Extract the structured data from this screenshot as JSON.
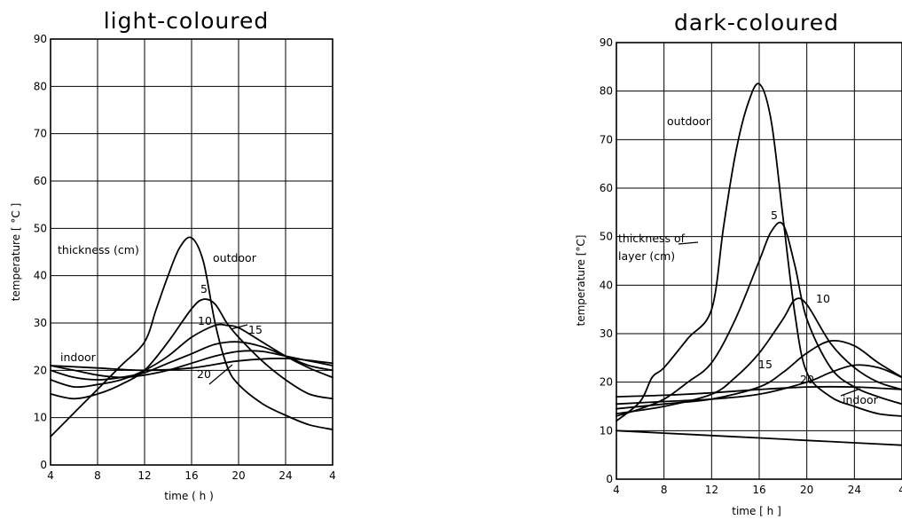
{
  "chart_data": [
    {
      "type": "line",
      "title": "light-coloured",
      "xlabel": "time ( h )",
      "ylabel": "temperature [ °C ]",
      "xlim": [
        4,
        28
      ],
      "ylim": [
        0,
        90
      ],
      "x_ticks": [
        "4",
        "8",
        "12",
        "16",
        "20",
        "24",
        "4"
      ],
      "y_ticks": [
        "0",
        "10",
        "20",
        "30",
        "40",
        "50",
        "60",
        "70",
        "80",
        "90"
      ],
      "annotations": {
        "thickness": "thickness (cm)",
        "outdoor": "outdoor",
        "indoor": "indoor",
        "t5": "5",
        "t10": "10",
        "t15": "15",
        "t20": "20"
      },
      "grid": true,
      "series": [
        {
          "name": "outdoor",
          "x": [
            4,
            6,
            8,
            10,
            12,
            13,
            14,
            15,
            16,
            17,
            18,
            19,
            20,
            22,
            24,
            26,
            28
          ],
          "y": [
            6,
            11,
            16,
            21,
            26,
            33,
            40,
            46,
            48,
            43,
            30,
            21,
            17,
            13,
            10.5,
            8.5,
            7.5
          ]
        },
        {
          "name": "5",
          "x": [
            4,
            6,
            8,
            10,
            12,
            14,
            16,
            17,
            18,
            19,
            20,
            22,
            24,
            26,
            28
          ],
          "y": [
            15,
            14,
            15,
            17,
            20,
            26,
            33,
            35,
            34,
            30,
            27,
            22,
            18,
            15,
            14
          ]
        },
        {
          "name": "10",
          "x": [
            4,
            6,
            8,
            10,
            12,
            14,
            16,
            18,
            19,
            20,
            22,
            24,
            26,
            28
          ],
          "y": [
            18,
            16.5,
            17,
            18,
            20,
            23,
            27,
            29.5,
            29.5,
            29,
            26,
            23,
            20.5,
            18.5
          ]
        },
        {
          "name": "15",
          "x": [
            4,
            6,
            8,
            10,
            12,
            14,
            16,
            18,
            20,
            22,
            24,
            26,
            28
          ],
          "y": [
            20,
            18.5,
            18,
            18.5,
            19.5,
            21.5,
            23.5,
            25.5,
            26,
            25,
            23,
            21,
            20
          ]
        },
        {
          "name": "20",
          "x": [
            4,
            6,
            8,
            10,
            12,
            14,
            16,
            18,
            20,
            22,
            24,
            26,
            28
          ],
          "y": [
            21,
            20,
            19,
            18.5,
            19,
            20,
            21.5,
            23,
            24,
            24,
            23,
            22,
            21
          ]
        },
        {
          "name": "indoor",
          "x": [
            4,
            8,
            12,
            16,
            20,
            24,
            28
          ],
          "y": [
            21,
            20.5,
            20,
            20.5,
            22,
            22.5,
            21.5
          ]
        }
      ]
    },
    {
      "type": "line",
      "title": "dark-coloured",
      "xlabel": "time [ h ]",
      "ylabel": "temperature [°C]",
      "xlim": [
        4,
        28
      ],
      "ylim": [
        0,
        90
      ],
      "x_ticks": [
        "4",
        "8",
        "12",
        "16",
        "20",
        "24",
        "4"
      ],
      "y_ticks": [
        "0",
        "10",
        "20",
        "30",
        "40",
        "50",
        "60",
        "70",
        "80",
        "90"
      ],
      "annotations": {
        "thickness": "thickness of layer (cm)",
        "outdoor": "outdoor",
        "indoor": "indoor",
        "t5": "5",
        "t10": "10",
        "t15": "15",
        "t20": "20"
      },
      "grid": true,
      "series": [
        {
          "name": "outdoor",
          "x": [
            4,
            6,
            7,
            8,
            10,
            12,
            13,
            14,
            15,
            16,
            17,
            18,
            19,
            20,
            22,
            24,
            26,
            28
          ],
          "y": [
            12,
            16,
            21,
            23,
            29,
            35,
            52,
            67,
            77,
            81.5,
            74,
            54,
            34,
            22,
            17,
            15,
            13.5,
            13
          ]
        },
        {
          "name": "5",
          "x": [
            4,
            6,
            8,
            10,
            12,
            14,
            16,
            17,
            18,
            19,
            20,
            22,
            24,
            26,
            28
          ],
          "y": [
            13,
            14.5,
            16.5,
            20,
            24,
            33,
            45,
            51,
            52.5,
            44,
            33,
            23,
            19,
            17,
            15.5
          ]
        },
        {
          "name": "10",
          "x": [
            4,
            8,
            12,
            14,
            16,
            18,
            19,
            20,
            22,
            24,
            26,
            28
          ],
          "y": [
            13.5,
            15,
            17.5,
            21,
            26,
            33,
            37,
            36,
            28,
            23,
            20,
            18.5
          ]
        },
        {
          "name": "15",
          "x": [
            4,
            8,
            12,
            16,
            18,
            20,
            22,
            24,
            26,
            28
          ],
          "y": [
            14.5,
            15.5,
            16.5,
            19,
            22,
            26,
            28.5,
            27.5,
            24,
            21
          ]
        },
        {
          "name": "20",
          "x": [
            4,
            8,
            12,
            16,
            20,
            22,
            24,
            26,
            28
          ],
          "y": [
            15.5,
            16,
            16.5,
            17.5,
            20,
            22,
            23.5,
            23,
            21
          ]
        },
        {
          "name": "indoor",
          "x": [
            4,
            8,
            12,
            16,
            20,
            24,
            28
          ],
          "y": [
            17,
            17.3,
            17.8,
            18.5,
            19,
            19,
            18.5
          ]
        },
        {
          "name": "",
          "x": [
            4,
            8,
            12,
            16,
            20,
            24,
            28
          ],
          "y": [
            10,
            9.5,
            9,
            8.5,
            8,
            7.5,
            7
          ]
        }
      ]
    }
  ]
}
